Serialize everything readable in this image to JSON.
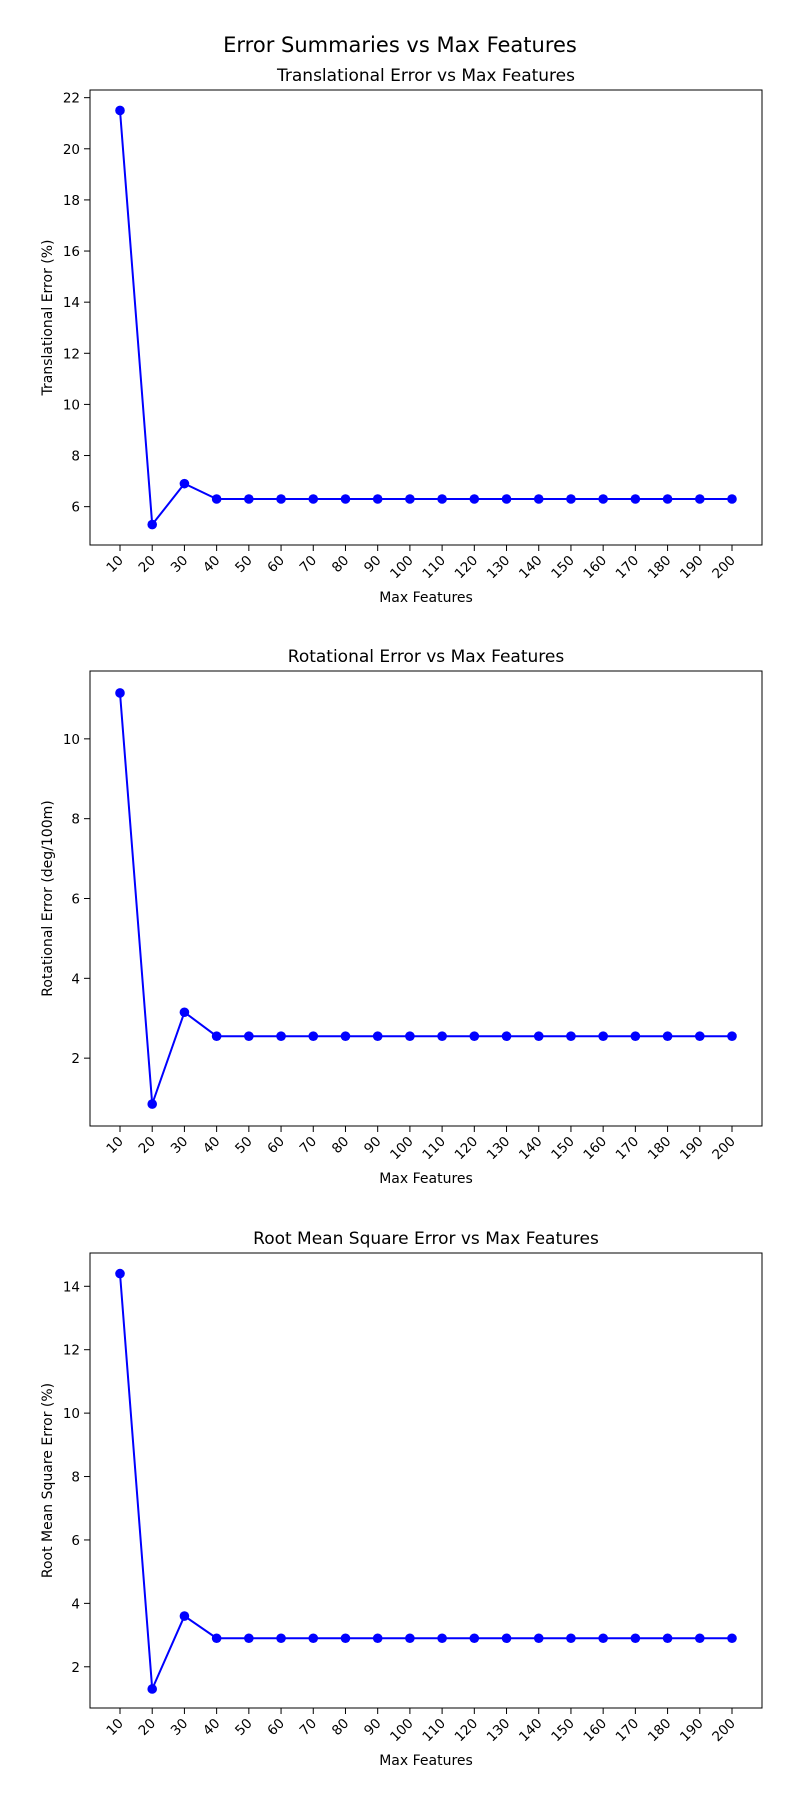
{
  "figure": {
    "title": "Error Summaries vs Max Features",
    "line_color": "#0000ff"
  },
  "chart_data": [
    {
      "type": "line",
      "title": "Translational Error vs Max Features",
      "xlabel": "Max Features",
      "ylabel": "Translational Error (%)",
      "categories": [
        "10",
        "20",
        "30",
        "40",
        "50",
        "60",
        "70",
        "80",
        "90",
        "100",
        "110",
        "120",
        "130",
        "140",
        "150",
        "160",
        "170",
        "180",
        "190",
        "200"
      ],
      "values": [
        21.5,
        5.3,
        6.9,
        6.3,
        6.3,
        6.3,
        6.3,
        6.3,
        6.3,
        6.3,
        6.3,
        6.3,
        6.3,
        6.3,
        6.3,
        6.3,
        6.3,
        6.3,
        6.3,
        6.3
      ],
      "ylim": [
        4.5,
        22.3
      ],
      "yticks": [
        6,
        8,
        10,
        12,
        14,
        16,
        18,
        20,
        22
      ],
      "grid": false,
      "marker": "circle",
      "color": "#0000ff"
    },
    {
      "type": "line",
      "title": "Rotational Error vs Max Features",
      "xlabel": "Max Features",
      "ylabel": "Rotational Error (deg/100m)",
      "categories": [
        "10",
        "20",
        "30",
        "40",
        "50",
        "60",
        "70",
        "80",
        "90",
        "100",
        "110",
        "120",
        "130",
        "140",
        "150",
        "160",
        "170",
        "180",
        "190",
        "200"
      ],
      "values": [
        11.15,
        0.85,
        3.15,
        2.55,
        2.55,
        2.55,
        2.55,
        2.55,
        2.55,
        2.55,
        2.55,
        2.55,
        2.55,
        2.55,
        2.55,
        2.55,
        2.55,
        2.55,
        2.55,
        2.55
      ],
      "ylim": [
        0.3,
        11.7
      ],
      "yticks": [
        2,
        4,
        6,
        8,
        10
      ],
      "grid": false,
      "marker": "circle",
      "color": "#0000ff"
    },
    {
      "type": "line",
      "title": "Root Mean Square Error vs Max Features",
      "xlabel": "Max Features",
      "ylabel": "Root Mean Square Error (%)",
      "categories": [
        "10",
        "20",
        "30",
        "40",
        "50",
        "60",
        "70",
        "80",
        "90",
        "100",
        "110",
        "120",
        "130",
        "140",
        "150",
        "160",
        "170",
        "180",
        "190",
        "200"
      ],
      "values": [
        14.4,
        1.3,
        3.6,
        2.9,
        2.9,
        2.9,
        2.9,
        2.9,
        2.9,
        2.9,
        2.9,
        2.9,
        2.9,
        2.9,
        2.9,
        2.9,
        2.9,
        2.9,
        2.9,
        2.9
      ],
      "ylim": [
        0.7,
        15.05
      ],
      "yticks": [
        2,
        4,
        6,
        8,
        10,
        12,
        14
      ],
      "grid": false,
      "marker": "circle",
      "color": "#0000ff"
    }
  ]
}
